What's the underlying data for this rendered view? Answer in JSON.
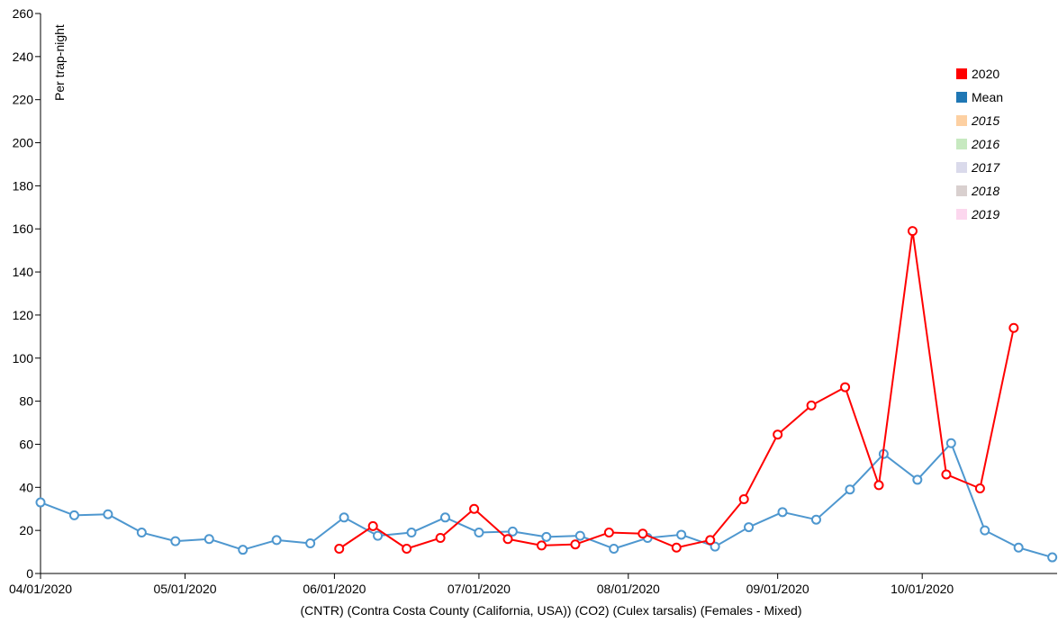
{
  "chart_data": {
    "type": "line",
    "ylabel": "Per trap-night",
    "xlabel": "(CNTR) (Contra Costa County (California, USA)) (CO2) (Culex tarsalis) (Females - Mixed)",
    "x_ticks": [
      "04/01/2020",
      "05/01/2020",
      "06/01/2020",
      "07/01/2020",
      "08/01/2020",
      "09/01/2020",
      "10/01/2020"
    ],
    "y_ticks": [
      "0",
      "20",
      "40",
      "60",
      "80",
      "100",
      "120",
      "140",
      "160",
      "180",
      "200",
      "220",
      "240",
      "260"
    ],
    "xlim": [
      "2020-04-01",
      "2020-10-29"
    ],
    "ylim": [
      0,
      260
    ],
    "legend_position": "top-right",
    "legend": [
      {
        "label": "2020",
        "color": "#ff0000",
        "italic": false
      },
      {
        "label": "Mean",
        "color": "#1f77b4",
        "italic": false
      },
      {
        "label": "2015",
        "color": "#fdd0a2",
        "italic": true
      },
      {
        "label": "2016",
        "color": "#c7e9c0",
        "italic": true
      },
      {
        "label": "2017",
        "color": "#dadaeb",
        "italic": true
      },
      {
        "label": "2018",
        "color": "#d9d0cf",
        "italic": true
      },
      {
        "label": "2019",
        "color": "#fcd7ee",
        "italic": true
      }
    ],
    "series": [
      {
        "name": "Mean",
        "color": "#4e97cf",
        "points": [
          [
            "2020-04-01",
            33
          ],
          [
            "2020-04-08",
            27
          ],
          [
            "2020-04-15",
            27.5
          ],
          [
            "2020-04-22",
            19
          ],
          [
            "2020-04-29",
            15
          ],
          [
            "2020-05-06",
            16
          ],
          [
            "2020-05-13",
            11
          ],
          [
            "2020-05-20",
            15.5
          ],
          [
            "2020-05-27",
            14
          ],
          [
            "2020-06-03",
            26
          ],
          [
            "2020-06-10",
            17.5
          ],
          [
            "2020-06-17",
            19
          ],
          [
            "2020-06-24",
            26
          ],
          [
            "2020-07-01",
            19
          ],
          [
            "2020-07-08",
            19.5
          ],
          [
            "2020-07-15",
            17
          ],
          [
            "2020-07-22",
            17.5
          ],
          [
            "2020-07-29",
            11.5
          ],
          [
            "2020-08-05",
            16.5
          ],
          [
            "2020-08-12",
            18
          ],
          [
            "2020-08-19",
            12.5
          ],
          [
            "2020-08-26",
            21.5
          ],
          [
            "2020-09-02",
            28.5
          ],
          [
            "2020-09-09",
            25
          ],
          [
            "2020-09-16",
            39
          ],
          [
            "2020-09-23",
            55.5
          ],
          [
            "2020-09-30",
            43.5
          ],
          [
            "2020-10-07",
            60.5
          ],
          [
            "2020-10-14",
            20
          ],
          [
            "2020-10-21",
            12
          ],
          [
            "2020-10-28",
            7.5
          ]
        ]
      },
      {
        "name": "2020",
        "color": "#ff0000",
        "points": [
          [
            "2020-06-02",
            11.5
          ],
          [
            "2020-06-09",
            22
          ],
          [
            "2020-06-16",
            11.5
          ],
          [
            "2020-06-23",
            16.5
          ],
          [
            "2020-06-30",
            30
          ],
          [
            "2020-07-07",
            16
          ],
          [
            "2020-07-14",
            13
          ],
          [
            "2020-07-21",
            13.5
          ],
          [
            "2020-07-28",
            19
          ],
          [
            "2020-08-04",
            18.5
          ],
          [
            "2020-08-11",
            12
          ],
          [
            "2020-08-18",
            15.5
          ],
          [
            "2020-08-25",
            34.5
          ],
          [
            "2020-09-01",
            64.5
          ],
          [
            "2020-09-08",
            78
          ],
          [
            "2020-09-15",
            86.5
          ],
          [
            "2020-09-22",
            41
          ],
          [
            "2020-09-29",
            159
          ],
          [
            "2020-10-06",
            46
          ],
          [
            "2020-10-13",
            39.5
          ],
          [
            "2020-10-20",
            114
          ]
        ]
      }
    ]
  }
}
